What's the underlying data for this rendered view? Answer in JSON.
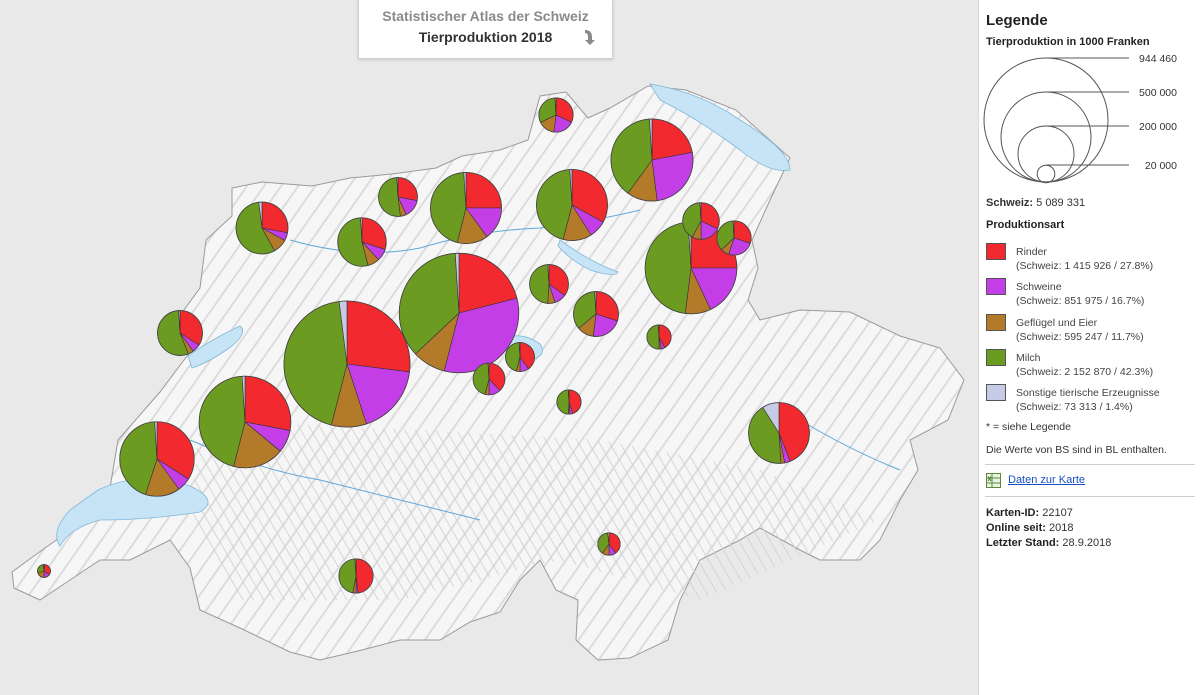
{
  "title": {
    "line1": "Statistischer Atlas der Schweiz",
    "line2": "Tierproduktion 2018"
  },
  "icons": {
    "download": "download-arrow-icon",
    "data": "spreadsheet-icon"
  },
  "colors": {
    "rinder": "#f22a2f",
    "schweine": "#c43ee8",
    "gefluegel": "#b37a2a",
    "milch": "#6c9b22",
    "sonstige": "#c6cbe6",
    "water": "#c6e4f5",
    "land": "#f5f5f5"
  },
  "legend": {
    "heading": "Legende",
    "size_title": "Tierproduktion in 1000 Franken",
    "size_values": [
      "944 460",
      "500 000",
      "200 000",
      "20 000"
    ],
    "schweiz_label": "Schweiz:",
    "schweiz_value": "5 089 331",
    "type_title": "Produktionsart",
    "categories": [
      {
        "key": "rinder",
        "name": "Rinder",
        "detail": "(Schweiz: 1 415 926 / 27.8%)"
      },
      {
        "key": "schweine",
        "name": "Schweine",
        "detail": "(Schweiz: 851 975 / 16.7%)"
      },
      {
        "key": "gefluegel",
        "name": "Geflügel und Eier",
        "detail": "(Schweiz: 595 247 / 11.7%)"
      },
      {
        "key": "milch",
        "name": "Milch",
        "detail": "(Schweiz: 2 152 870 / 42.3%)"
      },
      {
        "key": "sonstige",
        "name": "Sonstige tierische Erzeugnisse",
        "detail": "(Schweiz: 73 313 / 1.4%)"
      }
    ],
    "note1": "* = siehe Legende",
    "note2": "Die Werte von BS sind in BL enthalten.",
    "data_link": "Daten zur Karte",
    "meta": [
      {
        "label": "Karten-ID:",
        "value": "22107"
      },
      {
        "label": "Online seit:",
        "value": "2018"
      },
      {
        "label": "Letzter Stand:",
        "value": "28.9.2018"
      }
    ]
  },
  "chart_data": {
    "type": "pie",
    "unit": "1000 Franken",
    "categories": [
      "Rinder",
      "Schweine",
      "Geflügel und Eier",
      "Milch",
      "Sonstige tierische Erzeugnisse"
    ],
    "pies": [
      {
        "id": "BE",
        "total": 944460,
        "shares": [
          27,
          18,
          9,
          44,
          2
        ]
      },
      {
        "id": "LU",
        "total": 850000,
        "shares": [
          21,
          33,
          9,
          36,
          1
        ]
      },
      {
        "id": "SG",
        "total": 500000,
        "shares": [
          25,
          18,
          9,
          47,
          1
        ]
      },
      {
        "id": "FR",
        "total": 500000,
        "shares": [
          28,
          8,
          18,
          45,
          1
        ]
      },
      {
        "id": "TG",
        "total": 400000,
        "shares": [
          22,
          26,
          12,
          39,
          1
        ]
      },
      {
        "id": "VD",
        "total": 330000,
        "shares": [
          34,
          6,
          15,
          44,
          1
        ]
      },
      {
        "id": "AG",
        "total": 300000,
        "shares": [
          25,
          15,
          14,
          45,
          1
        ]
      },
      {
        "id": "ZH",
        "total": 300000,
        "shares": [
          33,
          8,
          13,
          45,
          1
        ]
      },
      {
        "id": "JU",
        "total": 160000,
        "shares": [
          28,
          5,
          9,
          56,
          2
        ]
      },
      {
        "id": "SO",
        "total": 140000,
        "shares": [
          30,
          8,
          8,
          53,
          1
        ]
      },
      {
        "id": "NE",
        "total": 120000,
        "shares": [
          34,
          6,
          4,
          55,
          1
        ]
      },
      {
        "id": "ZG",
        "total": 120000,
        "shares": [
          30,
          22,
          12,
          35,
          1
        ]
      },
      {
        "id": "GR",
        "total": 220000,
        "shares": [
          44,
          3,
          2,
          42,
          9
        ]
      },
      {
        "id": "BL",
        "total": 90000,
        "shares": [
          28,
          15,
          5,
          51,
          1
        ]
      },
      {
        "id": "SZ",
        "total": 90000,
        "shares": [
          35,
          10,
          6,
          48,
          1
        ]
      },
      {
        "id": "AR",
        "total": 80000,
        "shares": [
          32,
          18,
          8,
          41,
          1
        ]
      },
      {
        "id": "AI",
        "total": 70000,
        "shares": [
          30,
          25,
          8,
          36,
          1
        ]
      },
      {
        "id": "SH",
        "total": 70000,
        "shares": [
          32,
          20,
          16,
          31,
          1
        ]
      },
      {
        "id": "OW",
        "total": 60000,
        "shares": [
          38,
          12,
          4,
          45,
          1
        ]
      },
      {
        "id": "NW",
        "total": 50000,
        "shares": [
          40,
          10,
          4,
          45,
          1
        ]
      },
      {
        "id": "VS",
        "total": 70000,
        "shares": [
          48,
          2,
          3,
          46,
          1
        ]
      },
      {
        "id": "GL",
        "total": 35000,
        "shares": [
          42,
          5,
          3,
          49,
          1
        ]
      },
      {
        "id": "UR",
        "total": 35000,
        "shares": [
          45,
          4,
          2,
          48,
          1
        ]
      },
      {
        "id": "TI",
        "total": 30000,
        "shares": [
          40,
          10,
          10,
          38,
          2
        ]
      },
      {
        "id": "GE",
        "total": 10000,
        "shares": [
          35,
          15,
          20,
          28,
          2
        ]
      }
    ]
  }
}
